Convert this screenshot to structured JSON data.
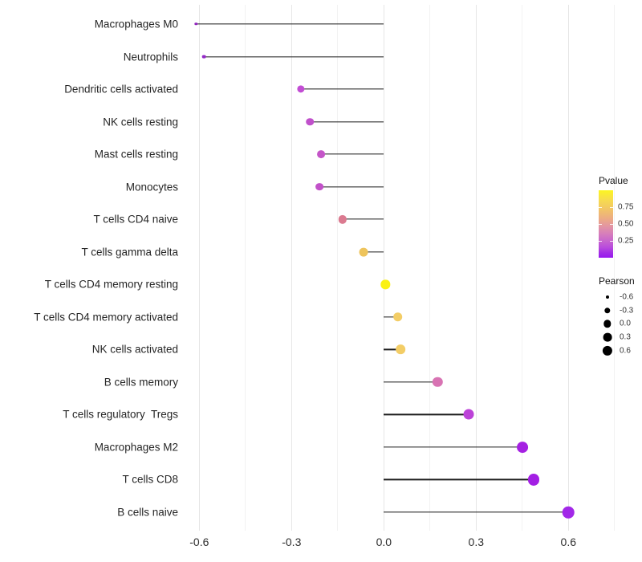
{
  "chart_data": {
    "type": "scatter",
    "subtype": "lollipop",
    "orientation": "horizontal",
    "title": "",
    "xlabel": "",
    "ylabel": "",
    "x_axis": {
      "major_ticks": [
        -0.6,
        -0.3,
        0.0,
        0.3,
        0.6
      ],
      "major_tick_labels": [
        "-0.6",
        "-0.3",
        "0.0",
        "0.3",
        "0.6"
      ],
      "minor_ticks": [
        -0.45,
        -0.15,
        0.15,
        0.45,
        0.75
      ],
      "xlim": [
        -0.655,
        0.815
      ],
      "grid": true
    },
    "baseline_x": 0.0,
    "points": [
      {
        "label": "Macrophages M0",
        "pearson": -0.61,
        "pvalue_color": "#9023BC"
      },
      {
        "label": "Neutrophils",
        "pearson": -0.585,
        "pvalue_color": "#9329C6"
      },
      {
        "label": "Dendritic cells activated",
        "pearson": -0.27,
        "pvalue_color": "#C24DD4"
      },
      {
        "label": "NK cells resting",
        "pearson": -0.24,
        "pvalue_color": "#C050CB"
      },
      {
        "label": "Mast cells resting",
        "pearson": -0.205,
        "pvalue_color": "#C455C8"
      },
      {
        "label": "Monocytes",
        "pearson": -0.21,
        "pvalue_color": "#C251C9"
      },
      {
        "label": "T cells CD4 naive",
        "pearson": -0.135,
        "pvalue_color": "#DB7A90"
      },
      {
        "label": "T cells gamma delta",
        "pearson": -0.065,
        "pvalue_color": "#EEC45C"
      },
      {
        "label": "T cells CD4 memory resting",
        "pearson": 0.005,
        "pvalue_color": "#FAF112"
      },
      {
        "label": "T cells CD4 memory activated",
        "pearson": 0.045,
        "pvalue_color": "#F3CD66"
      },
      {
        "label": "NK cells activated",
        "pearson": 0.055,
        "pvalue_color": "#F3CD66"
      },
      {
        "label": "B cells memory",
        "pearson": 0.175,
        "pvalue_color": "#D873B3"
      },
      {
        "label": "T cells regulatory  Tregs",
        "pearson": 0.275,
        "pvalue_color": "#BC42D8"
      },
      {
        "label": "Macrophages M2",
        "pearson": 0.45,
        "pvalue_color": "#A521E2"
      },
      {
        "label": "T cells CD8",
        "pearson": 0.487,
        "pvalue_color": "#A31FE4"
      },
      {
        "label": "B cells naive",
        "pearson": 0.6,
        "pvalue_color": "#A228E8"
      }
    ],
    "size_encoding": "Pearson",
    "color_encoding": "Pvalue",
    "legend_pvalue": {
      "title": "Pvalue",
      "tick_labels": [
        "0.75",
        "0.50",
        "0.25"
      ],
      "tick_values": [
        0.75,
        0.5,
        0.25
      ],
      "bar_range": [
        1.0,
        0.0
      ],
      "gradient_stops": [
        {
          "pos": 0.0,
          "color": "#FCF521"
        },
        {
          "pos": 0.14,
          "color": "#F7DC4E"
        },
        {
          "pos": 0.28,
          "color": "#F2C566"
        },
        {
          "pos": 0.42,
          "color": "#ECAB84"
        },
        {
          "pos": 0.54,
          "color": "#E294A4"
        },
        {
          "pos": 0.64,
          "color": "#D77FBA"
        },
        {
          "pos": 0.74,
          "color": "#C968CC"
        },
        {
          "pos": 0.85,
          "color": "#B84ADD"
        },
        {
          "pos": 0.93,
          "color": "#A22CE6"
        },
        {
          "pos": 1.0,
          "color": "#9717EF"
        }
      ]
    },
    "legend_pearson": {
      "title": "Pearson",
      "entries": [
        {
          "label": "-0.6",
          "value": -0.6,
          "radius_px": 2.0
        },
        {
          "label": "-0.3",
          "value": -0.3,
          "radius_px": 3.7
        },
        {
          "label": "0.0",
          "value": 0.0,
          "radius_px": 4.7
        },
        {
          "label": "0.3",
          "value": 0.3,
          "radius_px": 5.4
        },
        {
          "label": "0.6",
          "value": 0.6,
          "radius_px": 6.1
        }
      ],
      "dot_color": "#000000"
    },
    "colors": {
      "background": "#ffffff",
      "grid_major": "#e6e6e6",
      "grid_minor": "#f2f2f2",
      "stem": "#1a1a1a",
      "axis_text": "#2e2e2e",
      "category_text": "#262626"
    }
  }
}
